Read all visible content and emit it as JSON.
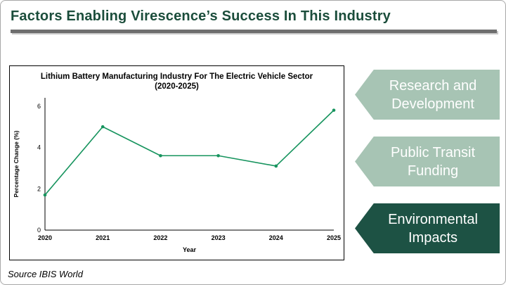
{
  "slide": {
    "title": "Factors Enabling Virescence’s Success In This Industry",
    "source": "Source IBIS World"
  },
  "theme": {
    "title_color": "#1b4d3b",
    "rule_color": "#6e6e6e",
    "light_arrow_color": "#a7c4b4",
    "dark_arrow_color": "#1d5244"
  },
  "chart_data": {
    "type": "line",
    "title": "Lithium Battery Manufacturing Industry For The Electric Vehicle Sector",
    "subtitle": "(2020-2025)",
    "xlabel": "Year",
    "ylabel": "Percentage Change (%)",
    "x": [
      2020,
      2021,
      2022,
      2023,
      2024,
      2025
    ],
    "values": [
      1.7,
      5.0,
      3.6,
      3.6,
      3.1,
      5.8
    ],
    "ylim": [
      0,
      6.4
    ],
    "yticks": [
      0,
      2,
      4,
      6
    ],
    "line_color": "#17945e",
    "grid": false,
    "legend": "none"
  },
  "factors": [
    {
      "label": "Research and Development",
      "color": "#a7c4b4",
      "text_color": "#ffffff"
    },
    {
      "label": "Public Transit Funding",
      "color": "#a7c4b4",
      "text_color": "#ffffff"
    },
    {
      "label": "Environmental Impacts",
      "color": "#1d5244",
      "text_color": "#ffffff"
    }
  ]
}
